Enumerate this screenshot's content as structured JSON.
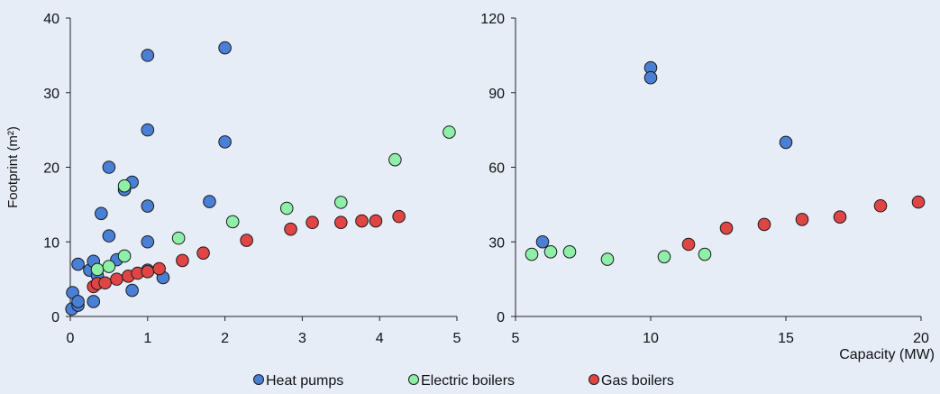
{
  "colors": {
    "background": "#e6edf7",
    "heat_pumps": "#4a7fd6",
    "electric_boilers": "#8ef0a8",
    "gas_boilers": "#e04545",
    "axis": "#222222",
    "marker_edge": "#1a1a1a"
  },
  "legend": {
    "placement": "bottom-center",
    "items": [
      "Heat pumps",
      "Electric boilers",
      "Gas boilers"
    ]
  },
  "chart_data": [
    {
      "type": "scatter",
      "xlabel": "",
      "ylabel": "Footprint (m²)",
      "xlim": [
        0,
        5
      ],
      "ylim": [
        0,
        40
      ],
      "xticks": [
        0,
        1,
        2,
        3,
        4,
        5
      ],
      "yticks": [
        0,
        10,
        20,
        30,
        40
      ],
      "grid": false,
      "series": [
        {
          "name": "Heat pumps",
          "points": [
            [
              0.02,
              1.0
            ],
            [
              0.03,
              3.2
            ],
            [
              0.1,
              1.5
            ],
            [
              0.1,
              2.0
            ],
            [
              0.1,
              7.0
            ],
            [
              0.25,
              6.2
            ],
            [
              0.3,
              7.4
            ],
            [
              0.3,
              2.0
            ],
            [
              0.35,
              5.5
            ],
            [
              0.4,
              13.8
            ],
            [
              0.5,
              20.0
            ],
            [
              0.5,
              10.8
            ],
            [
              0.6,
              7.6
            ],
            [
              0.7,
              17.0
            ],
            [
              0.8,
              18.0
            ],
            [
              0.8,
              3.5
            ],
            [
              1.0,
              35.0
            ],
            [
              1.0,
              25.0
            ],
            [
              1.0,
              14.8
            ],
            [
              1.0,
              10.0
            ],
            [
              1.0,
              6.2
            ],
            [
              1.2,
              5.2
            ],
            [
              1.8,
              15.4
            ],
            [
              2.0,
              36.0
            ],
            [
              2.0,
              23.4
            ]
          ]
        },
        {
          "name": "Electric boilers",
          "points": [
            [
              0.35,
              6.3
            ],
            [
              0.5,
              6.7
            ],
            [
              0.7,
              8.1
            ],
            [
              0.7,
              17.5
            ],
            [
              1.4,
              10.5
            ],
            [
              2.1,
              12.7
            ],
            [
              2.8,
              14.5
            ],
            [
              3.5,
              15.3
            ],
            [
              4.2,
              21.0
            ],
            [
              4.9,
              24.7
            ]
          ]
        },
        {
          "name": "Gas boilers",
          "points": [
            [
              0.3,
              4.0
            ],
            [
              0.35,
              4.4
            ],
            [
              0.45,
              4.5
            ],
            [
              0.6,
              5.0
            ],
            [
              0.75,
              5.4
            ],
            [
              0.87,
              5.8
            ],
            [
              1.0,
              6.0
            ],
            [
              1.15,
              6.4
            ],
            [
              1.45,
              7.5
            ],
            [
              1.72,
              8.5
            ],
            [
              2.28,
              10.2
            ],
            [
              2.85,
              11.7
            ],
            [
              3.13,
              12.6
            ],
            [
              3.5,
              12.6
            ],
            [
              3.77,
              12.8
            ],
            [
              3.95,
              12.8
            ],
            [
              4.25,
              13.4
            ]
          ]
        }
      ]
    },
    {
      "type": "scatter",
      "xlabel": "Capacity (MW)",
      "ylabel": "",
      "xlim": [
        5,
        20
      ],
      "ylim": [
        0,
        120
      ],
      "xticks": [
        5,
        10,
        15,
        20
      ],
      "yticks": [
        0,
        30,
        60,
        90,
        120
      ],
      "grid": false,
      "series": [
        {
          "name": "Heat pumps",
          "points": [
            [
              6.0,
              30.0
            ],
            [
              10.0,
              100.0
            ],
            [
              10.0,
              96.0
            ],
            [
              15.0,
              70.0
            ]
          ]
        },
        {
          "name": "Electric boilers",
          "points": [
            [
              5.6,
              25.0
            ],
            [
              6.3,
              26.0
            ],
            [
              7.0,
              26.0
            ],
            [
              8.4,
              23.0
            ],
            [
              10.5,
              24.0
            ],
            [
              12.0,
              25.0
            ]
          ]
        },
        {
          "name": "Gas boilers",
          "points": [
            [
              11.4,
              29.0
            ],
            [
              12.8,
              35.5
            ],
            [
              14.2,
              37.0
            ],
            [
              15.6,
              39.0
            ],
            [
              17.0,
              40.0
            ],
            [
              18.5,
              44.5
            ],
            [
              19.9,
              46.0
            ]
          ]
        }
      ]
    }
  ]
}
